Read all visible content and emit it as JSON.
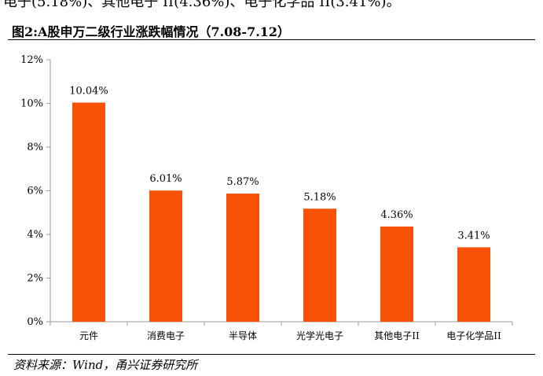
{
  "header_text": "电子(5.18%)、其他电子 II(4.36%)、电子化学品 II(3.41%)。",
  "figure_title": "图2:A股申万二级行业涨跌幅情况（7.08-7.12）",
  "source": "资料来源：Wind，甬兴证券研究所",
  "colors": {
    "bar": "#f85208",
    "axis": "#999999"
  },
  "chart_data": {
    "type": "bar",
    "title": "",
    "xlabel": "",
    "ylabel": "",
    "categories": [
      "元件",
      "消费电子",
      "半导体",
      "光学光电子",
      "其他电子II",
      "电子化学品II"
    ],
    "values": [
      10.04,
      6.01,
      5.87,
      5.18,
      4.36,
      3.41
    ],
    "data_labels": [
      "10.04%",
      "6.01%",
      "5.87%",
      "5.18%",
      "4.36%",
      "3.41%"
    ],
    "ylim": [
      0,
      12
    ],
    "yticks": [
      0,
      2,
      4,
      6,
      8,
      10,
      12
    ],
    "ytick_labels": [
      "0%",
      "2%",
      "4%",
      "6%",
      "8%",
      "10%",
      "12%"
    ],
    "grid": false,
    "legend": "none"
  }
}
